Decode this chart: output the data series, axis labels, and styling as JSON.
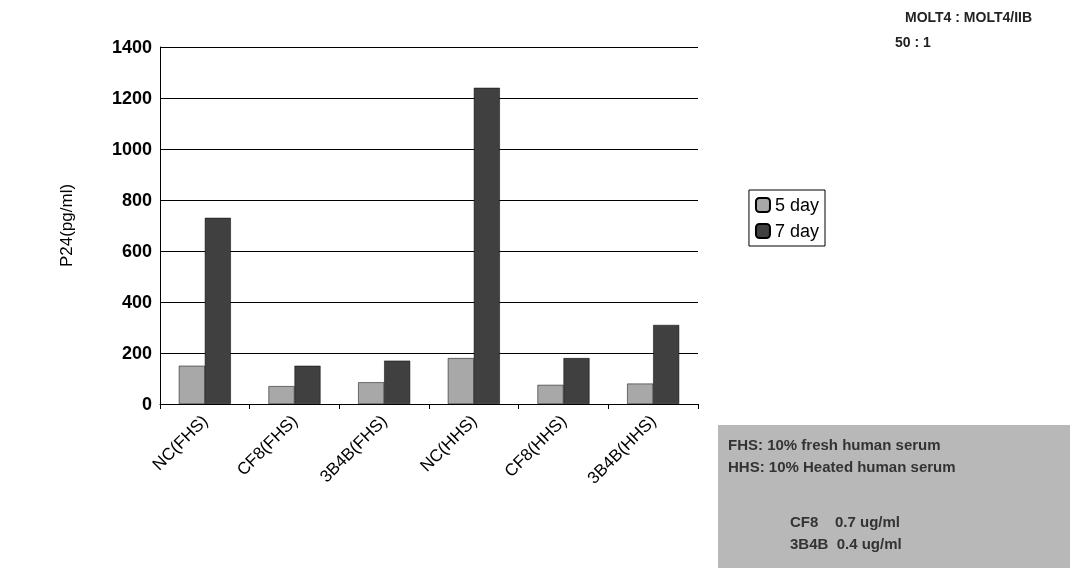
{
  "chart_data": {
    "type": "bar",
    "ylabel": "P24(pg/ml)",
    "categories": [
      "NC(FHS)",
      "CF8(FHS)",
      "3B4B(FHS)",
      "NC(HHS)",
      "CF8(HHS)",
      "3B4B(HHS)"
    ],
    "series": [
      {
        "name": "5 day",
        "color": "#a8a8a8",
        "values": [
          150,
          70,
          85,
          180,
          75,
          80
        ]
      },
      {
        "name": "7 day",
        "color": "#404040",
        "values": [
          730,
          150,
          170,
          1240,
          180,
          310
        ]
      }
    ],
    "ylim": [
      0,
      1400
    ],
    "yticks": [
      0,
      200,
      400,
      600,
      800,
      1000,
      1200,
      1400
    ],
    "grid": "y",
    "legend": "right",
    "annotations": [
      "MOLT4 : MOLT4/IIB",
      "50 : 1",
      "FHS: 10% fresh human serum",
      "HHS: 10% Heated human serum",
      "CF8    0.7 ug/ml",
      "3B4B  0.4 ug/ml"
    ]
  }
}
